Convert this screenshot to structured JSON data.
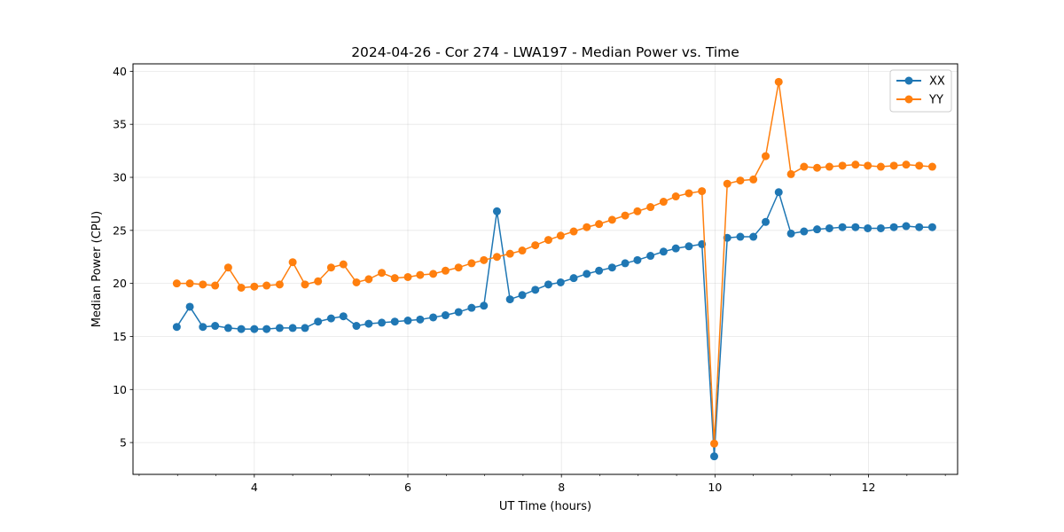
{
  "chart_data": {
    "type": "line",
    "title": "2024-04-26 - Cor 274 - LWA197 - Median Power vs. Time",
    "xlabel": "UT Time (hours)",
    "ylabel": "Median Power (CPU)",
    "xlim": [
      2.42,
      13.16
    ],
    "ylim": [
      2.0,
      40.7
    ],
    "xticks": [
      4,
      6,
      8,
      10,
      12
    ],
    "xtick_labels": [
      "4",
      "6",
      "8",
      "10",
      "12"
    ],
    "yticks": [
      5,
      10,
      15,
      20,
      25,
      30,
      35,
      40
    ],
    "ytick_labels": [
      "5",
      "10",
      "15",
      "20",
      "25",
      "30",
      "35",
      "40"
    ],
    "grid": true,
    "legend_position": "top-right",
    "x": [
      2.99,
      3.16,
      3.33,
      3.49,
      3.66,
      3.83,
      4.0,
      4.16,
      4.33,
      4.5,
      4.66,
      4.83,
      5.0,
      5.16,
      5.33,
      5.49,
      5.66,
      5.83,
      6.0,
      6.16,
      6.33,
      6.49,
      6.66,
      6.83,
      6.99,
      7.16,
      7.33,
      7.49,
      7.66,
      7.83,
      7.99,
      8.16,
      8.33,
      8.49,
      8.66,
      8.83,
      8.99,
      9.16,
      9.33,
      9.49,
      9.66,
      9.83,
      9.99,
      10.16,
      10.33,
      10.5,
      10.66,
      10.83,
      10.99,
      11.16,
      11.33,
      11.49,
      11.66,
      11.83,
      11.99,
      12.16,
      12.33,
      12.49,
      12.66,
      12.83
    ],
    "series": [
      {
        "name": "XX",
        "color": "#1f77b4",
        "values": [
          15.9,
          17.8,
          15.9,
          16.0,
          15.8,
          15.7,
          15.7,
          15.7,
          15.8,
          15.8,
          15.8,
          16.4,
          16.7,
          16.9,
          16.0,
          16.2,
          16.3,
          16.4,
          16.5,
          16.6,
          16.8,
          17.0,
          17.3,
          17.7,
          17.9,
          26.8,
          18.5,
          18.9,
          19.4,
          19.9,
          20.1,
          20.5,
          20.9,
          21.2,
          21.5,
          21.9,
          22.2,
          22.6,
          23.0,
          23.3,
          23.5,
          23.7,
          3.7,
          24.3,
          24.4,
          24.4,
          25.8,
          28.6,
          24.7,
          24.9,
          25.1,
          25.2,
          25.3,
          25.3,
          25.2,
          25.2,
          25.3,
          25.4,
          25.3,
          25.3
        ]
      },
      {
        "name": "YY",
        "color": "#ff7f0e",
        "values": [
          20.0,
          20.0,
          19.9,
          19.8,
          21.5,
          19.6,
          19.7,
          19.8,
          19.9,
          22.0,
          19.9,
          20.2,
          21.5,
          21.8,
          20.1,
          20.4,
          21.0,
          20.5,
          20.6,
          20.8,
          20.9,
          21.2,
          21.5,
          21.9,
          22.2,
          22.5,
          22.8,
          23.1,
          23.6,
          24.1,
          24.5,
          24.9,
          25.3,
          25.6,
          26.0,
          26.4,
          26.8,
          27.2,
          27.7,
          28.2,
          28.5,
          28.7,
          4.9,
          29.4,
          29.7,
          29.8,
          32.0,
          39.0,
          30.3,
          31.0,
          30.9,
          31.0,
          31.1,
          31.2,
          31.1,
          31.0,
          31.1,
          31.2,
          31.1,
          31.0
        ]
      }
    ]
  }
}
